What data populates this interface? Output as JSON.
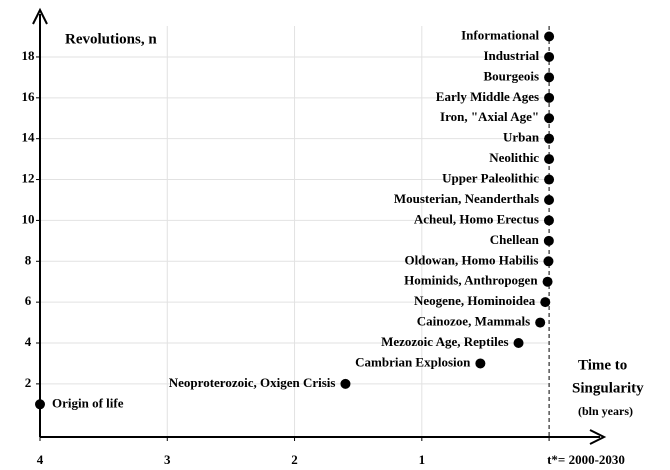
{
  "chart_data": {
    "type": "scatter",
    "ylabel": "Revolutions, n",
    "xlabel": [
      "Time to",
      "Singularity",
      "(bln years)"
    ],
    "labels": [
      "Origin of life",
      "Neoproterozoic, Oxigen Crisis",
      "Cambrian Explosion",
      "Mezozoic Age, Reptiles",
      "Cainozoe, Mammals",
      "Neogene, Hominoidea",
      "Hominids, Anthropogen",
      "Oldowan, Homo Habilis",
      "Chellean",
      "Acheul, Homo Erectus",
      "Mousterian, Neanderthals",
      "Upper Paleolithic",
      "Neolithic",
      "Urban",
      "Iron, \"Axial Age\"",
      "Early Middle Ages",
      "Bourgeois",
      "Industrial",
      "Informational"
    ],
    "x": [
      4,
      1.6,
      0.54,
      0.24,
      0.07,
      0.03,
      0.012,
      0.005,
      0.002,
      0.001,
      0.0005,
      0.0002,
      0.0001,
      5e-05,
      3e-05,
      2e-05,
      1e-05,
      5e-06,
      2e-06
    ],
    "values": [
      1,
      2,
      3,
      4,
      5,
      6,
      7,
      8,
      9,
      10,
      11,
      12,
      13,
      14,
      15,
      16,
      17,
      18,
      19
    ],
    "color": "#000000",
    "xlim": [
      4,
      -0.4
    ],
    "xticks": [
      4,
      3,
      2,
      1,
      {
        "value": 0,
        "label": "t*= 2000-2030"
      }
    ],
    "ylim": [
      -0.6,
      20.2
    ],
    "yticks": [
      2,
      4,
      6,
      8,
      10,
      12,
      14,
      16,
      18
    ],
    "grid": true
  }
}
